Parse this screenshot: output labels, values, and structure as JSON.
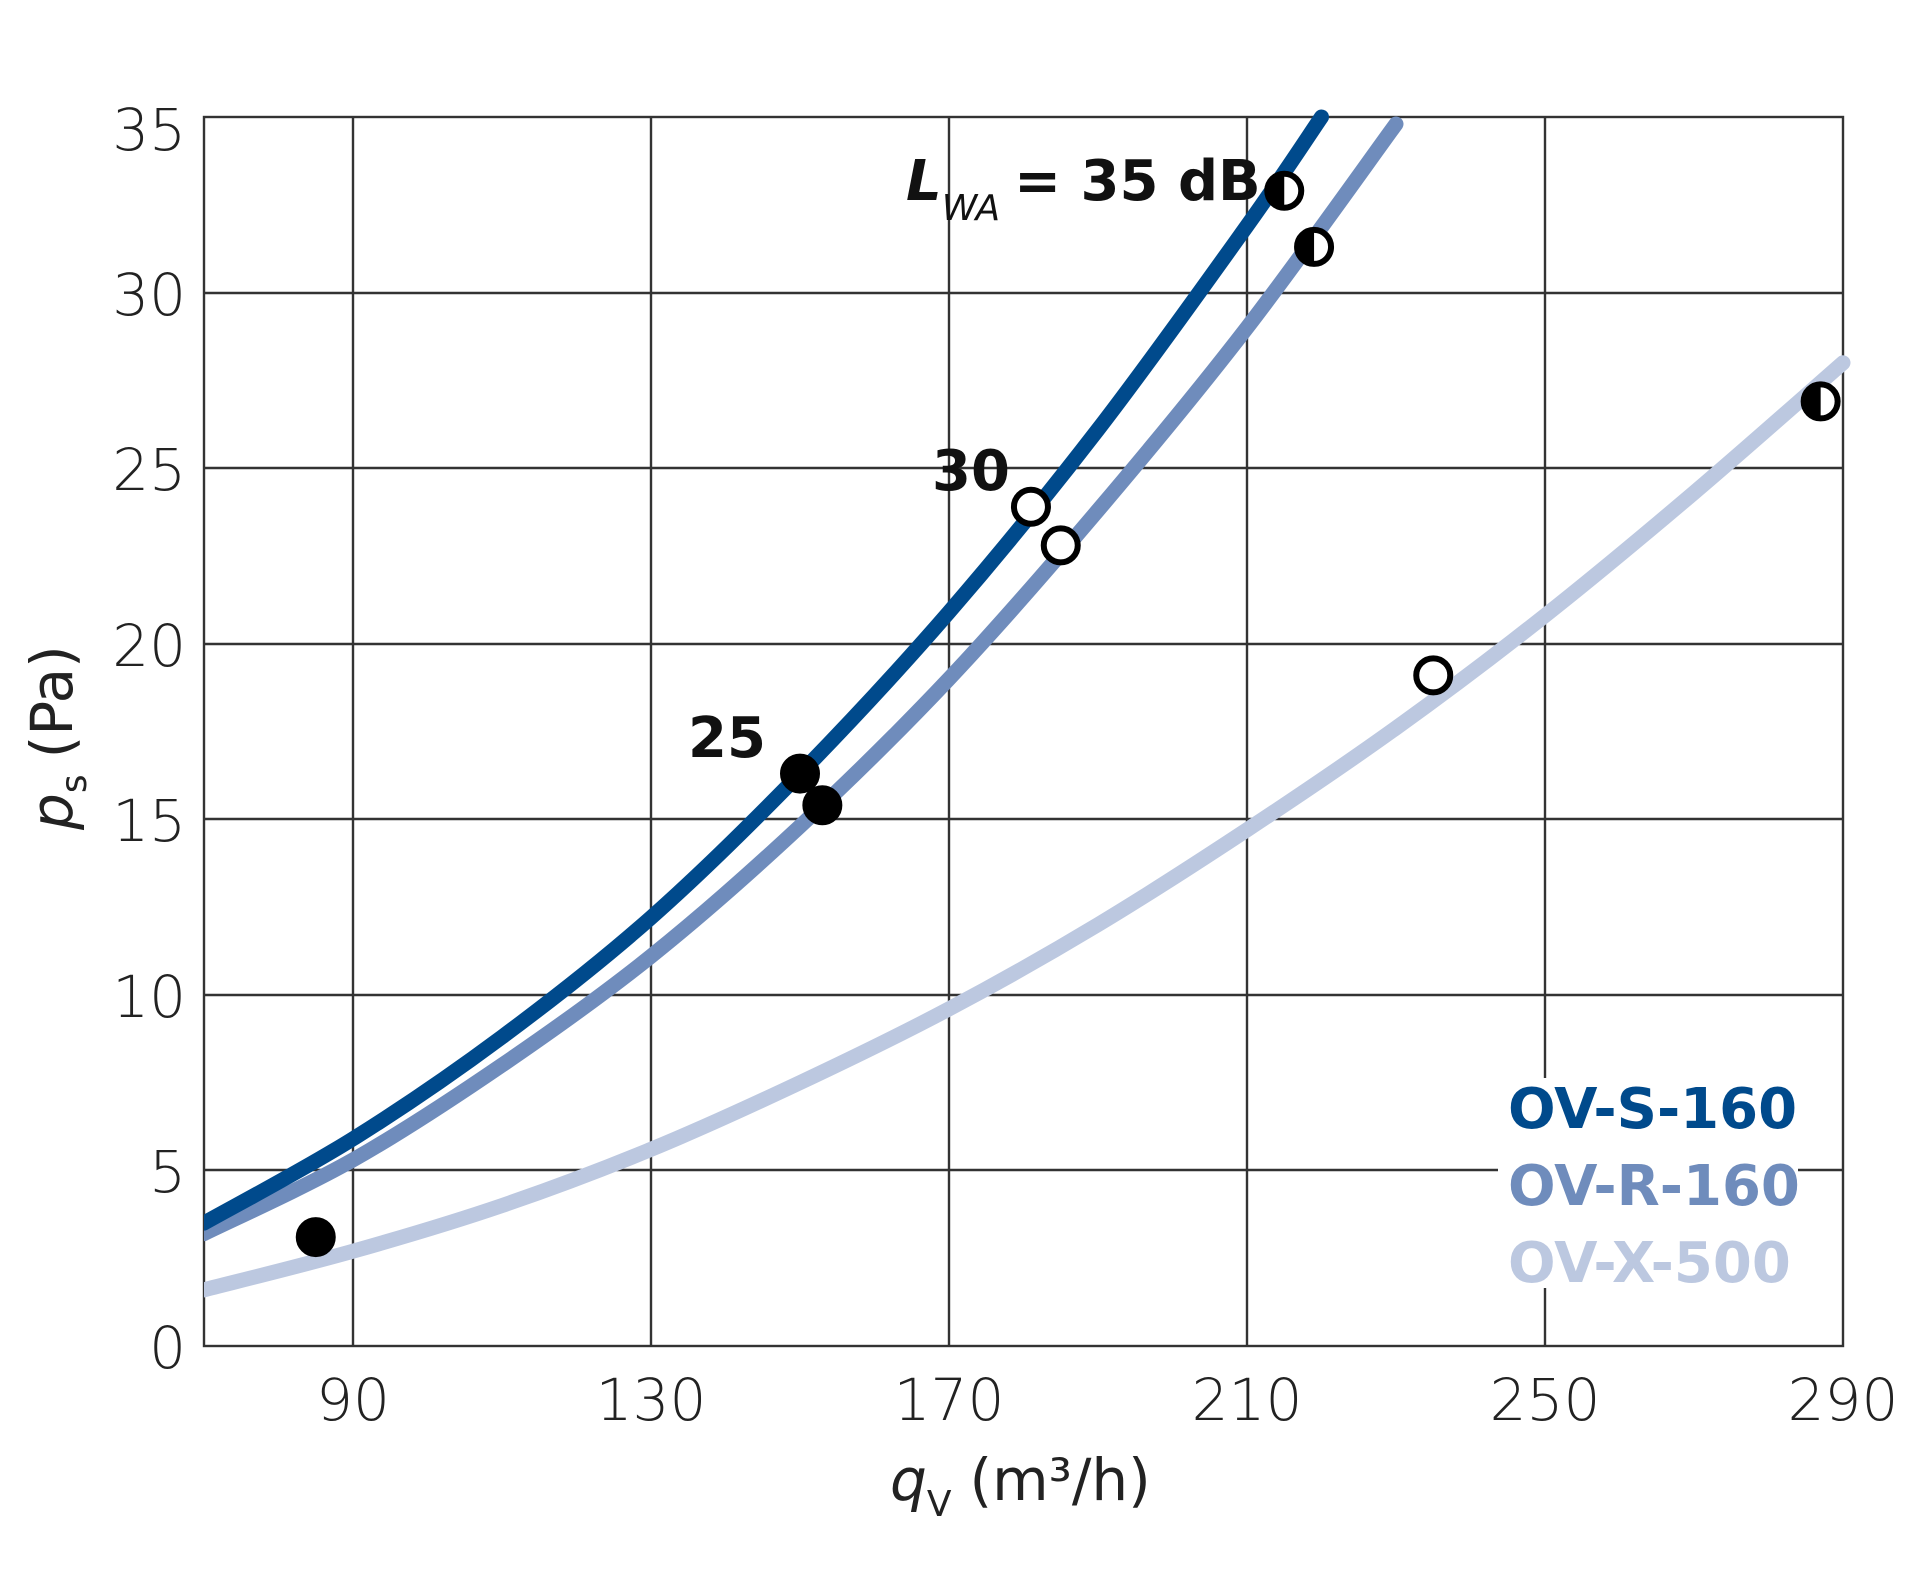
{
  "chart_data": {
    "type": "line",
    "title": "",
    "xlabel": "q_V (m³/h)",
    "ylabel": "p_s (Pa)",
    "xlabel_main": "q",
    "xlabel_sub": "V",
    "xlabel_unit": "(m³/h)",
    "ylabel_main": "p",
    "ylabel_sub": "s",
    "ylabel_unit": "(Pa)",
    "xlim": [
      70,
      290
    ],
    "ylim": [
      0,
      35
    ],
    "x_ticks": [
      90,
      130,
      170,
      210,
      250,
      290
    ],
    "y_ticks": [
      0,
      5,
      10,
      15,
      20,
      25,
      30,
      35
    ],
    "grid": true,
    "legend_position": "lower right inside",
    "series": [
      {
        "name": "OV-S-160",
        "color": "#004a8c",
        "x": [
          70,
          90,
          110,
          130,
          150,
          170,
          190,
          210,
          220
        ],
        "values": [
          3.5,
          5.9,
          8.8,
          12.2,
          16.3,
          20.9,
          26.1,
          31.9,
          35.0
        ]
      },
      {
        "name": "OV-R-160",
        "color": "#6f8cbc",
        "x": [
          70,
          90,
          110,
          130,
          150,
          170,
          190,
          210,
          230
        ],
        "values": [
          3.2,
          5.3,
          8.0,
          11.1,
          14.8,
          19.0,
          23.8,
          29.0,
          34.8
        ]
      },
      {
        "name": "OV-X-500",
        "color": "#bcc8e0",
        "x": [
          70,
          90,
          110,
          130,
          150,
          170,
          190,
          210,
          230,
          250,
          270,
          290
        ],
        "values": [
          1.6,
          2.7,
          4.0,
          5.6,
          7.5,
          9.6,
          12.0,
          14.7,
          17.6,
          20.8,
          24.3,
          28.0
        ]
      }
    ],
    "markers": [
      {
        "series": "OV-S-160",
        "x": 150,
        "y": 16.3,
        "style": "filled",
        "level": "25"
      },
      {
        "series": "OV-R-160",
        "x": 153,
        "y": 15.4,
        "style": "filled",
        "level": "25"
      },
      {
        "series": "OV-X-500",
        "x": 85,
        "y": 3.1,
        "style": "filled",
        "level": "25"
      },
      {
        "series": "OV-S-160",
        "x": 181,
        "y": 23.9,
        "style": "open",
        "level": "30"
      },
      {
        "series": "OV-R-160",
        "x": 185,
        "y": 22.8,
        "style": "open",
        "level": "30"
      },
      {
        "series": "OV-X-500",
        "x": 235,
        "y": 19.1,
        "style": "open",
        "level": "30"
      },
      {
        "series": "OV-S-160",
        "x": 215,
        "y": 32.9,
        "style": "half",
        "level": "35"
      },
      {
        "series": "OV-R-160",
        "x": 219,
        "y": 31.3,
        "style": "half",
        "level": "35"
      },
      {
        "series": "OV-X-500",
        "x": 287,
        "y": 26.9,
        "style": "half",
        "level": "35"
      }
    ],
    "annotations": [
      {
        "text": "L_WA = 35 dB",
        "main": "L",
        "sub": "WA",
        "rest": "= 35 dB",
        "near": "half-filled markers"
      },
      {
        "text": "30",
        "near": "open markers"
      },
      {
        "text": "25",
        "near": "filled markers"
      }
    ]
  },
  "legend": {
    "items": [
      {
        "label": "OV-S-160",
        "color": "#004a8c"
      },
      {
        "label": "OV-R-160",
        "color": "#6f8cbc"
      },
      {
        "label": "OV-X-500",
        "color": "#bcc8e0"
      }
    ]
  },
  "axes": {
    "x_tick_labels": [
      "90",
      "130",
      "170",
      "210",
      "250",
      "290"
    ],
    "y_tick_labels": [
      "0",
      "5",
      "10",
      "15",
      "20",
      "25",
      "30",
      "35"
    ]
  },
  "annotations": {
    "lwa_main": "L",
    "lwa_sub": "WA",
    "lwa_rest": "= 35 dB",
    "level_30": "30",
    "level_25": "25"
  },
  "labels": {
    "x_main": "q",
    "x_sub": "V",
    "x_unit": "(m³/h)",
    "y_main": "p",
    "y_sub": "s",
    "y_unit": "(Pa)"
  }
}
